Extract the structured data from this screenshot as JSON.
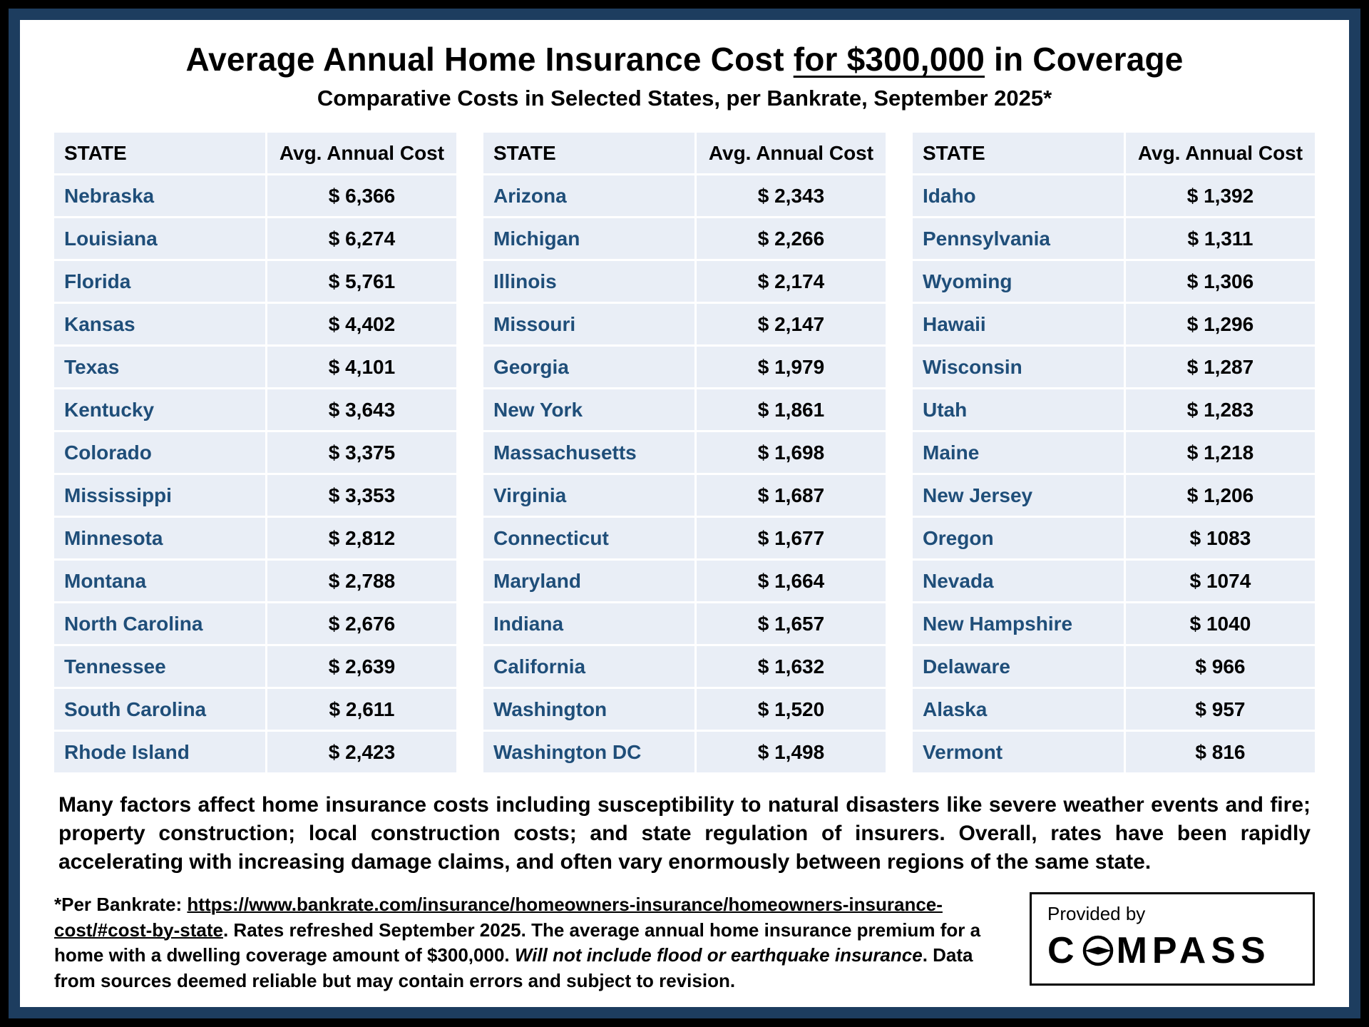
{
  "title": {
    "pre": "Average Annual Home Insurance Cost ",
    "underlined": "for $300,000",
    "post": " in Coverage"
  },
  "subtitle": "Comparative Costs in Selected States, per Bankrate, September 2025*",
  "chart_data": {
    "type": "table",
    "title": "Average Annual Home Insurance Cost for $300,000 in Coverage",
    "subtitle": "Comparative Costs in Selected States, per Bankrate, September 2025*",
    "columns": [
      "STATE",
      "Avg. Annual Cost"
    ],
    "tables": [
      {
        "rows": [
          [
            "Nebraska",
            "$ 6,366"
          ],
          [
            "Louisiana",
            "$ 6,274"
          ],
          [
            "Florida",
            "$ 5,761"
          ],
          [
            "Kansas",
            "$ 4,402"
          ],
          [
            "Texas",
            "$ 4,101"
          ],
          [
            "Kentucky",
            "$ 3,643"
          ],
          [
            "Colorado",
            "$ 3,375"
          ],
          [
            "Mississippi",
            "$ 3,353"
          ],
          [
            "Minnesota",
            "$ 2,812"
          ],
          [
            "Montana",
            "$ 2,788"
          ],
          [
            "North Carolina",
            "$ 2,676"
          ],
          [
            "Tennessee",
            "$ 2,639"
          ],
          [
            "South Carolina",
            "$ 2,611"
          ],
          [
            "Rhode Island",
            "$ 2,423"
          ]
        ]
      },
      {
        "rows": [
          [
            "Arizona",
            "$ 2,343"
          ],
          [
            "Michigan",
            "$ 2,266"
          ],
          [
            "Illinois",
            "$ 2,174"
          ],
          [
            "Missouri",
            "$ 2,147"
          ],
          [
            "Georgia",
            "$ 1,979"
          ],
          [
            "New York",
            "$ 1,861"
          ],
          [
            "Massachusetts",
            "$ 1,698"
          ],
          [
            "Virginia",
            "$ 1,687"
          ],
          [
            "Connecticut",
            "$ 1,677"
          ],
          [
            "Maryland",
            "$ 1,664"
          ],
          [
            "Indiana",
            "$ 1,657"
          ],
          [
            "California",
            "$ 1,632"
          ],
          [
            "Washington",
            "$ 1,520"
          ],
          [
            "Washington DC",
            "$ 1,498"
          ]
        ]
      },
      {
        "rows": [
          [
            "Idaho",
            "$ 1,392"
          ],
          [
            "Pennsylvania",
            "$ 1,311"
          ],
          [
            "Wyoming",
            "$ 1,306"
          ],
          [
            "Hawaii",
            "$ 1,296"
          ],
          [
            "Wisconsin",
            "$ 1,287"
          ],
          [
            "Utah",
            "$ 1,283"
          ],
          [
            "Maine",
            "$ 1,218"
          ],
          [
            "New Jersey",
            "$ 1,206"
          ],
          [
            "Oregon",
            "$ 1083"
          ],
          [
            "Nevada",
            "$ 1074"
          ],
          [
            "New Hampshire",
            "$ 1040"
          ],
          [
            "Delaware",
            "$ 966"
          ],
          [
            "Alaska",
            "$ 957"
          ],
          [
            "Vermont",
            "$ 816"
          ]
        ]
      }
    ]
  },
  "paragraph": "Many factors affect home insurance costs including susceptibility to natural disasters like severe weather events and fire; property construction; local construction costs; and state regulation of insurers. Overall, rates have been rapidly accelerating with increasing damage claims, and often vary enormously between regions of the same state.",
  "footnote": {
    "prefix": "*Per Bankrate:  ",
    "link": "https://www.bankrate.com/insurance/homeowners-insurance/homeowners-insurance-cost/#cost-by-state",
    "mid": ". Rates refreshed September 2025. The average annual home insurance premium for a home with a dwelling coverage amount of $300,000. ",
    "italic": "Will not include flood or earthquake insurance",
    "suffix": ". Data from sources deemed reliable but may contain errors and subject to revision."
  },
  "provided_by": {
    "label": "Provided by",
    "logo_pre": "C",
    "logo_post": "MPASS"
  },
  "colors": {
    "frame_border": "#1d3d5f",
    "table_background": "#e9eef6",
    "state_text": "#1f4e79",
    "cost_text": "#000000",
    "outer_background": "#000000"
  }
}
